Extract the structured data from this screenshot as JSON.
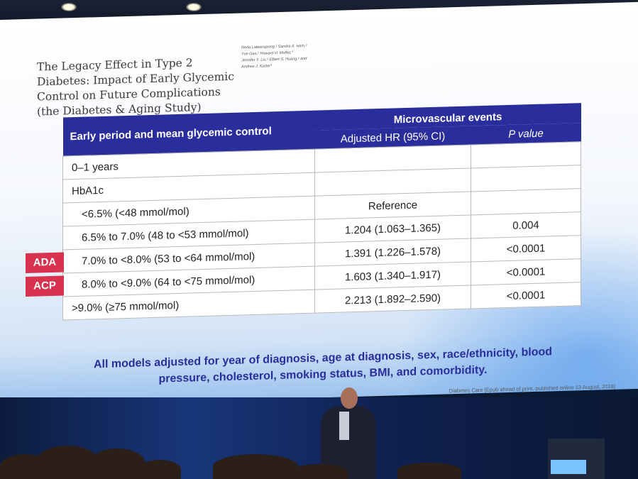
{
  "slide": {
    "title": "The Legacy Effect in Type 2\nDiabetes: Impact of Early Glycemic\nControl on Future Complications\n(the Diabetes & Aging Study)",
    "authors": [
      "Neda Laiteerapong,¹ Sandra A. Ham,²",
      "Yue Gao,¹ Howard H. Moffet,³",
      "Jennifer Y. Liu,³ Elbert S. Huang,¹ and",
      "Andrew J. Karter³"
    ],
    "table": {
      "header": {
        "row_label": "Early period and mean glycemic control",
        "group": "Microvascular events",
        "hr": "Adjusted HR (95% CI)",
        "pvalue": "P value"
      },
      "rows": [
        {
          "label": "0–1 years",
          "hr": "",
          "p": "",
          "tag": ""
        },
        {
          "label": "HbA1c",
          "hr": "",
          "p": "",
          "tag": ""
        },
        {
          "label": "<6.5% (<48 mmol/mol)",
          "hr": "Reference",
          "p": "",
          "tag": ""
        },
        {
          "label": "6.5% to 7.0% (48 to <53 mmol/mol)",
          "hr": "1.204 (1.063–1.365)",
          "p": "0.004",
          "tag": "ADA"
        },
        {
          "label": "7.0% to <8.0% (53 to <64 mmol/mol)",
          "hr": "1.391 (1.226–1.578)",
          "p": "<0.0001",
          "tag": "ACP"
        },
        {
          "label": "8.0% to <9.0% (64 to <75 mmol/mol)",
          "hr": "1.603 (1.340–1.917)",
          "p": "<0.0001",
          "tag": ""
        },
        {
          "label": ">9.0% (≥75 mmol/mol)",
          "hr": "2.213 (1.892–2.590)",
          "p": "<0.0001",
          "tag": ""
        }
      ]
    },
    "footnote": "All models adjusted for year of diagnosis, age at diagnosis, sex, race/ethnicity, blood pressure, cholesterol, smoking status, BMI, and comorbidity.",
    "citation": "Diabetes Care [Epub ahead of print, published online 13 August, 2018]"
  },
  "colors": {
    "header_bg": "#2a2e9c",
    "tag_bg": "#d8324e",
    "footnote_text": "#2a2e9c"
  }
}
